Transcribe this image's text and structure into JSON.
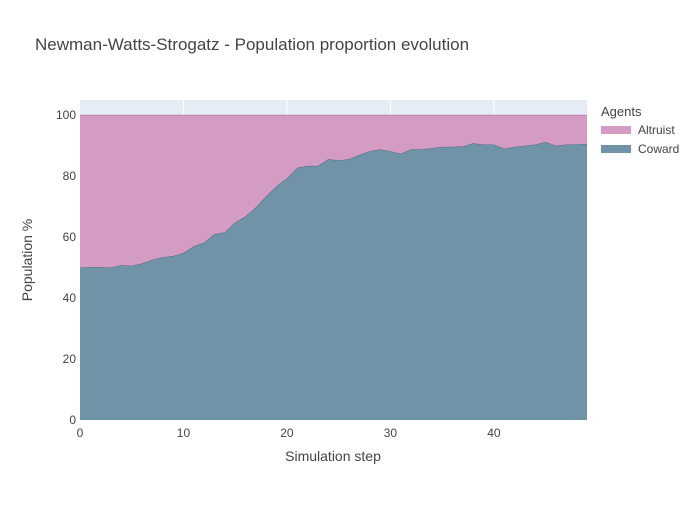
{
  "chart_data": {
    "type": "area",
    "title": "Newman-Watts-Strogatz - Population proportion evolution",
    "xlabel": "Simulation step",
    "ylabel": "Population %",
    "xlim": [
      0,
      49
    ],
    "ylim": [
      0,
      105
    ],
    "x_ticks": [
      0,
      10,
      20,
      30,
      40
    ],
    "y_ticks": [
      0,
      20,
      40,
      60,
      80,
      100
    ],
    "grid": true,
    "stacked": true,
    "legend": {
      "title": "Agents",
      "placement": "right"
    },
    "x": [
      0,
      1,
      2,
      3,
      4,
      5,
      6,
      7,
      8,
      9,
      10,
      11,
      12,
      13,
      14,
      15,
      16,
      17,
      18,
      19,
      20,
      21,
      22,
      23,
      24,
      25,
      26,
      27,
      28,
      29,
      30,
      31,
      32,
      33,
      34,
      35,
      36,
      37,
      38,
      39,
      40,
      41,
      42,
      43,
      44,
      45,
      46,
      47,
      48,
      49
    ],
    "series": [
      {
        "name": "Coward",
        "color": "#7193a7",
        "values": [
          50,
          50.2,
          50.2,
          50,
          50.8,
          50.6,
          51.4,
          52.6,
          53.4,
          53.8,
          54.8,
          57,
          58.2,
          61,
          61.6,
          64.8,
          66.8,
          69.8,
          73.4,
          76.8,
          79.2,
          82.8,
          83.4,
          83.4,
          85.6,
          85.2,
          85.6,
          87,
          88.2,
          88.8,
          88.2,
          87.4,
          88.8,
          88.8,
          89.2,
          89.6,
          89.6,
          89.8,
          90.8,
          90.4,
          90.4,
          89,
          89.6,
          90,
          90.4,
          91.2,
          90,
          90.4,
          90.4,
          90.6
        ]
      },
      {
        "name": "Altruist",
        "color": "#d49bc3",
        "values": [
          50,
          49.8,
          49.8,
          50,
          49.2,
          49.4,
          48.6,
          47.4,
          46.6,
          46.2,
          45.2,
          43,
          41.8,
          39,
          38.4,
          35.2,
          33.2,
          30.2,
          26.6,
          23.2,
          20.8,
          17.2,
          16.6,
          16.6,
          14.4,
          14.8,
          14.4,
          13,
          11.8,
          11.2,
          11.8,
          12.6,
          11.2,
          11.2,
          10.8,
          10.4,
          10.4,
          10.2,
          9.2,
          9.6,
          9.6,
          11,
          10.4,
          10,
          9.6,
          8.8,
          10,
          9.6,
          9.6,
          9.4
        ]
      }
    ]
  }
}
